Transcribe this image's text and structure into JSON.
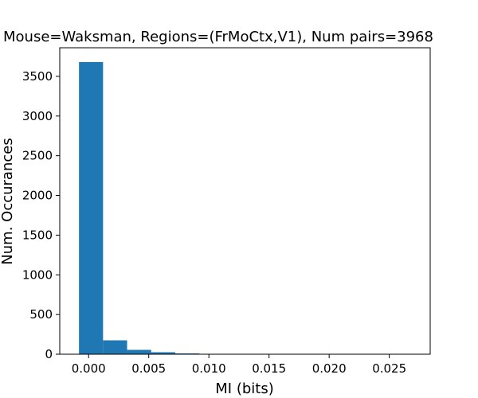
{
  "chart_data": {
    "type": "bar",
    "title": "Mouse=Waksman, Regions=(FrMoCtx,V1), Num pairs=3968",
    "xlabel": "MI (bits)",
    "ylabel": "Num. Occurances",
    "xlim": [
      -0.0024,
      0.0284
    ],
    "ylim": [
      0,
      3860
    ],
    "bin_edges": [
      -0.0008,
      0.0012,
      0.0032,
      0.0052,
      0.0072,
      0.0092,
      0.0112,
      0.0132,
      0.0152,
      0.0172,
      0.0192,
      0.0212,
      0.0232,
      0.0252,
      0.0272
    ],
    "values": [
      3680,
      175,
      55,
      25,
      10,
      5,
      3,
      2,
      1,
      1,
      0,
      1,
      0,
      1
    ],
    "xticks": [
      0.0,
      0.005,
      0.01,
      0.015,
      0.02,
      0.025
    ],
    "xtick_labels": [
      "0.000",
      "0.005",
      "0.010",
      "0.015",
      "0.020",
      "0.025"
    ],
    "yticks": [
      0,
      500,
      1000,
      1500,
      2000,
      2500,
      3000,
      3500
    ],
    "ytick_labels": [
      "0",
      "500",
      "1000",
      "1500",
      "2000",
      "2500",
      "3000",
      "3500"
    ],
    "bar_color": "#1f77b4",
    "grid": false,
    "legend": "none"
  }
}
